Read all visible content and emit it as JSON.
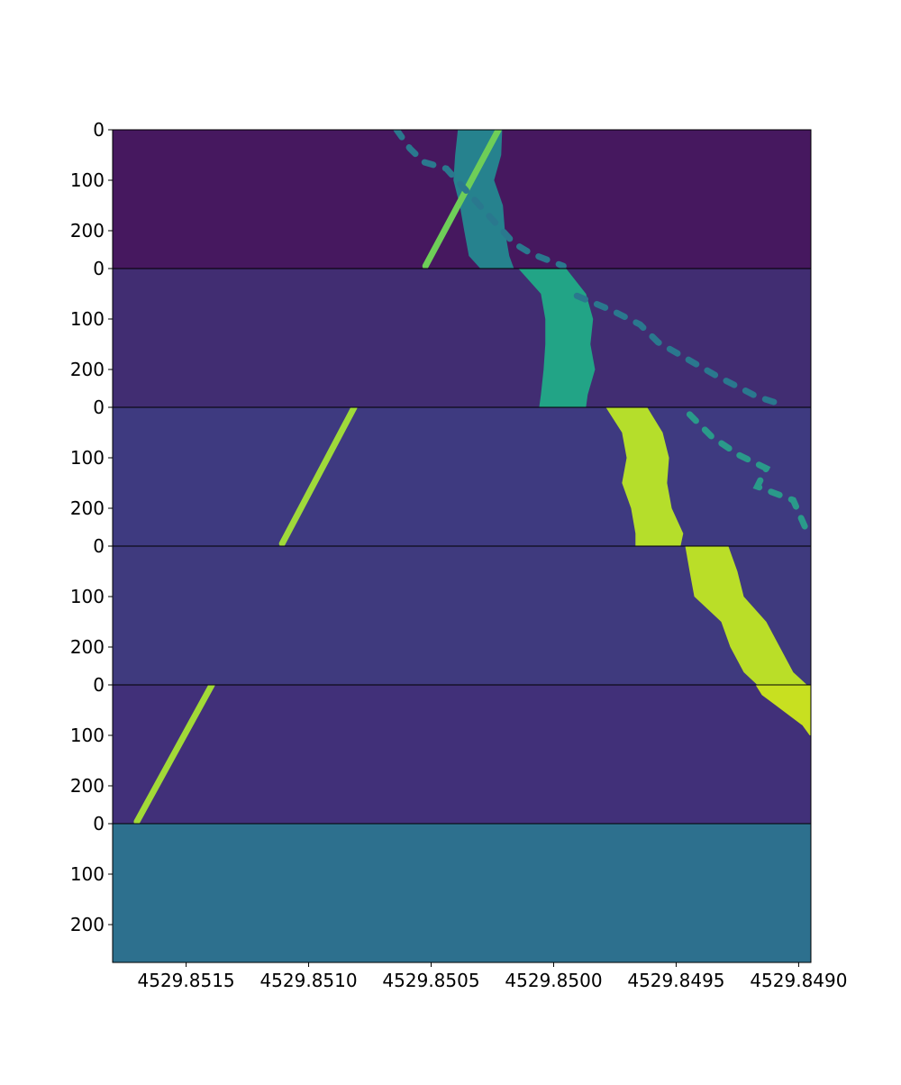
{
  "chart_data": [
    {
      "type": "waterfall",
      "background": "#46185f",
      "xlim": [
        4529.8518,
        4529.84895
      ],
      "ylim": [
        0,
        275
      ],
      "yticks": [
        0,
        100,
        200
      ],
      "bands": [
        {
          "color": "#26828e",
          "y": [
            0,
            50,
            100,
            150,
            200,
            250,
            275
          ],
          "x_left": [
            4529.850391,
            4529.850402,
            4529.850409,
            4529.850383,
            4529.850365,
            4529.850346,
            4529.850299
          ],
          "x_right": [
            4529.85021,
            4529.850214,
            4529.850243,
            4529.850207,
            4529.850199,
            4529.850181,
            4529.850162
          ]
        }
      ],
      "tracks": [
        {
          "color": "#6ece58",
          "x": [
            4529.850225,
            4529.850523
          ],
          "y": [
            0,
            270
          ]
        },
        {
          "color": "#2a788e",
          "dashed": true,
          "x": [
            4529.850641,
            4529.850586,
            4529.85053,
            4529.850438,
            4529.850162,
            4529.850089,
            4529.84996
          ],
          "y": [
            0,
            37.5,
            64,
            77,
            225,
            246,
            270
          ]
        }
      ]
    },
    {
      "type": "waterfall",
      "background": "#412d72",
      "xlim": [
        4529.8518,
        4529.84895
      ],
      "ylim": [
        0,
        275
      ],
      "yticks": [
        0,
        100,
        200
      ],
      "bands": [
        {
          "color": "#22a486",
          "y": [
            0,
            50,
            100,
            150,
            200,
            250,
            275
          ],
          "x_left": [
            4529.850144,
            4529.850052,
            4529.850034,
            4529.850034,
            4529.850041,
            4529.850052,
            4529.850059
          ],
          "x_right": [
            4529.849949,
            4529.849868,
            4529.849839,
            4529.84985,
            4529.849831,
            4529.849861,
            4529.849868
          ]
        }
      ],
      "tracks": [
        {
          "color": "#2a788e",
          "dashed": true,
          "x": [
            4529.849905,
            4529.849758,
            4529.849647,
            4529.849574,
            4529.849445,
            4529.849334,
            4529.849169,
            4529.849058
          ],
          "y": [
            54,
            84,
            111,
            146,
            182,
            213,
            254,
            271
          ]
        }
      ]
    },
    {
      "type": "waterfall",
      "background": "#3e3a80",
      "xlim": [
        4529.8518,
        4529.84895
      ],
      "ylim": [
        0,
        275
      ],
      "yticks": [
        0,
        100,
        200
      ],
      "bands": [
        {
          "color": "#b5de2b",
          "y": [
            0,
            50,
            100,
            150,
            200,
            250,
            275
          ],
          "x_left": [
            4529.849787,
            4529.849721,
            4529.849702,
            4529.849721,
            4529.849684,
            4529.849666,
            4529.849666
          ],
          "x_right": [
            4529.849618,
            4529.849555,
            4529.849529,
            4529.849537,
            4529.849518,
            4529.849471,
            4529.849482
          ]
        }
      ],
      "tracks": [
        {
          "color": "#9fda3a",
          "x": [
            4529.850814,
            4529.851108
          ],
          "y": [
            0,
            270
          ]
        },
        {
          "color": "#2a9a8a",
          "dashed": true,
          "x": [
            4529.849445,
            4529.849353,
            4529.849242,
            4529.849132,
            4529.849169,
            4529.849022,
            4529.848966
          ],
          "y": [
            14,
            59,
            95,
            121,
            157,
            184,
            246
          ]
        }
      ]
    },
    {
      "type": "waterfall",
      "background": "#3f3a7e",
      "xlim": [
        4529.8518,
        4529.84895
      ],
      "ylim": [
        0,
        275
      ],
      "yticks": [
        0,
        100,
        200
      ],
      "bands": [
        {
          "color": "#bade28",
          "y": [
            0,
            50,
            100,
            150,
            200,
            250,
            275
          ],
          "x_left": [
            4529.849463,
            4529.849445,
            4529.849426,
            4529.849316,
            4529.849279,
            4529.849224,
            4529.849169
          ],
          "x_right": [
            4529.849287,
            4529.84925,
            4529.849224,
            4529.849132,
            4529.849077,
            4529.849022,
            4529.848966
          ]
        }
      ],
      "tracks": []
    },
    {
      "type": "waterfall",
      "background": "#413079",
      "xlim": [
        4529.8518,
        4529.84895
      ],
      "ylim": [
        0,
        275
      ],
      "yticks": [
        0,
        100,
        200
      ],
      "bands": [
        {
          "color": "#c8e020",
          "y": [
            0,
            20,
            40,
            60,
            80,
            100
          ],
          "x_left": [
            4529.849176,
            4529.84915,
            4529.849095,
            4529.84904,
            4529.848985,
            4529.848955
          ],
          "x_right": [
            4529.84895,
            4529.84895,
            4529.84895,
            4529.84895,
            4529.84895,
            4529.84895
          ]
        }
      ],
      "tracks": [
        {
          "color": "#a2da37",
          "x": [
            4529.851395,
            4529.851701
          ],
          "y": [
            0,
            271
          ]
        }
      ]
    },
    {
      "type": "waterfall",
      "background": "#2d708e",
      "xlim": [
        4529.8518,
        4529.84895
      ],
      "ylim": [
        0,
        275
      ],
      "yticks": [
        0,
        100,
        200
      ],
      "bands": [],
      "tracks": [],
      "xticks": [
        {
          "value": 4529.8515,
          "label": "4529.8515"
        },
        {
          "value": 4529.851,
          "label": "4529.8510"
        },
        {
          "value": 4529.8505,
          "label": "4529.8505"
        },
        {
          "value": 4529.85,
          "label": "4529.8500"
        },
        {
          "value": 4529.8495,
          "label": "4529.8495"
        },
        {
          "value": 4529.849,
          "label": "4529.8490"
        }
      ]
    }
  ]
}
